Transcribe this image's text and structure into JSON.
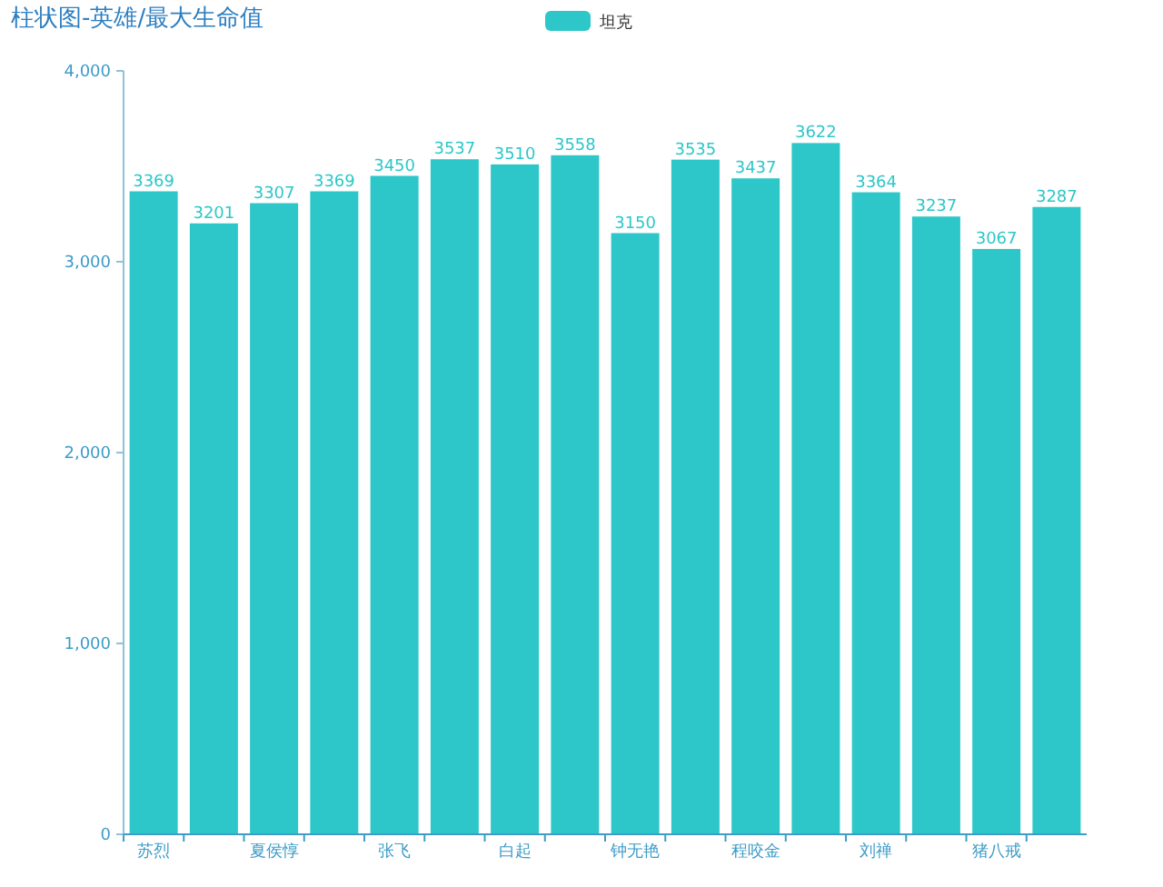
{
  "chart_data": {
    "type": "bar",
    "title": "柱状图-英雄/最大生命值",
    "categories": [
      "苏烈",
      null,
      "夏侯惇",
      null,
      "张飞",
      null,
      "白起",
      null,
      "钟无艳",
      null,
      "程咬金",
      null,
      "刘禅",
      null,
      "猪八戒",
      null
    ],
    "series": [
      {
        "name": "坦克",
        "color": "#2ec7c9",
        "values": [
          3369,
          3201,
          3307,
          3369,
          3450,
          3537,
          3510,
          3558,
          3150,
          3535,
          3437,
          3622,
          3364,
          3237,
          3067,
          3287
        ]
      }
    ],
    "ylim": [
      0,
      4000
    ],
    "yticks": [
      0,
      {
        "value": 1000,
        "label": "1,000"
      },
      {
        "value": 2000,
        "label": "2,000"
      },
      {
        "value": 3000,
        "label": "3,000"
      },
      {
        "value": 4000,
        "label": "4,000"
      }
    ],
    "data_labels": true,
    "legend": "top",
    "grid": false
  }
}
